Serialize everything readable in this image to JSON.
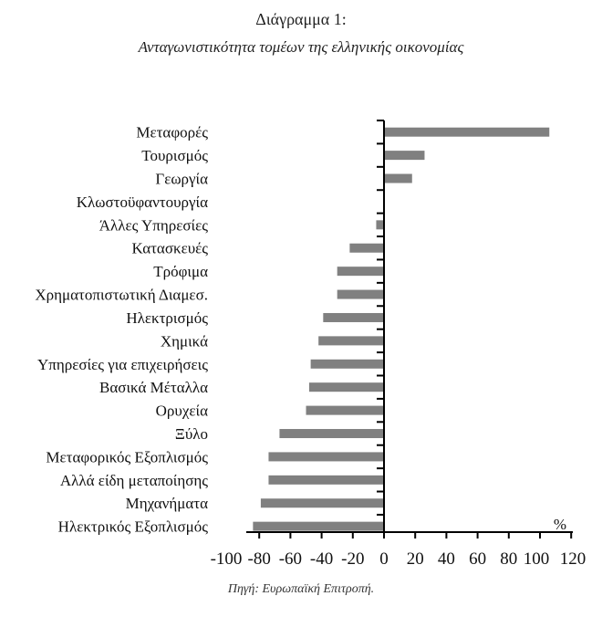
{
  "header": {
    "title": "Διάγραμμα 1:",
    "subtitle": "Ανταγωνιστικότητα τομέων της ελληνικής οικονομίας"
  },
  "footer": {
    "source": "Πηγή: Ευρωπαϊκή Επιτροπή."
  },
  "colors": {
    "bar": "#808080",
    "axis": "#000000"
  },
  "chart_data": {
    "type": "bar",
    "orientation": "horizontal",
    "title": "Διάγραμμα 1: Ανταγωνιστικότητα τομέων της ελληνικής οικονομίας",
    "xlabel": "%",
    "ylabel": "",
    "xlim": [
      -100,
      120
    ],
    "xticks": [
      -100,
      -80,
      -60,
      -40,
      -20,
      0,
      20,
      40,
      60,
      80,
      100,
      120
    ],
    "xtick_labels": [
      "-100",
      "-80",
      "-60",
      "-40",
      "-20",
      "0",
      "20",
      "40",
      "60",
      "80",
      "100",
      "120"
    ],
    "grid": false,
    "legend": null,
    "categories": [
      "Μεταφορές",
      "Τουρισμός",
      "Γεωργία",
      "Κλωστοϋφαντουργία",
      "Άλλες Υπηρεσίες",
      "Κατασκευές",
      "Τρόφιμα",
      "Χρηματοπιστωτική Διαμεσ.",
      "Ηλεκτρισμός",
      "Χημικά",
      "Υπηρεσίες για επιχειρήσεις",
      "Βασικά Μέταλλα",
      "Ορυχεία",
      "Ξύλο",
      "Μεταφορικός Εξοπλισμός",
      "Αλλά είδη μεταποίησης",
      "Μηχανήματα",
      "Ηλεκτρικός Εξοπλισμός"
    ],
    "values": [
      106,
      26,
      18,
      0,
      -5,
      -22,
      -30,
      -30,
      -39,
      -42,
      -47,
      -48,
      -50,
      -67,
      -74,
      -74,
      -79,
      -84
    ],
    "source": "Πηγή: Ευρωπαϊκή Επιτροπή."
  }
}
